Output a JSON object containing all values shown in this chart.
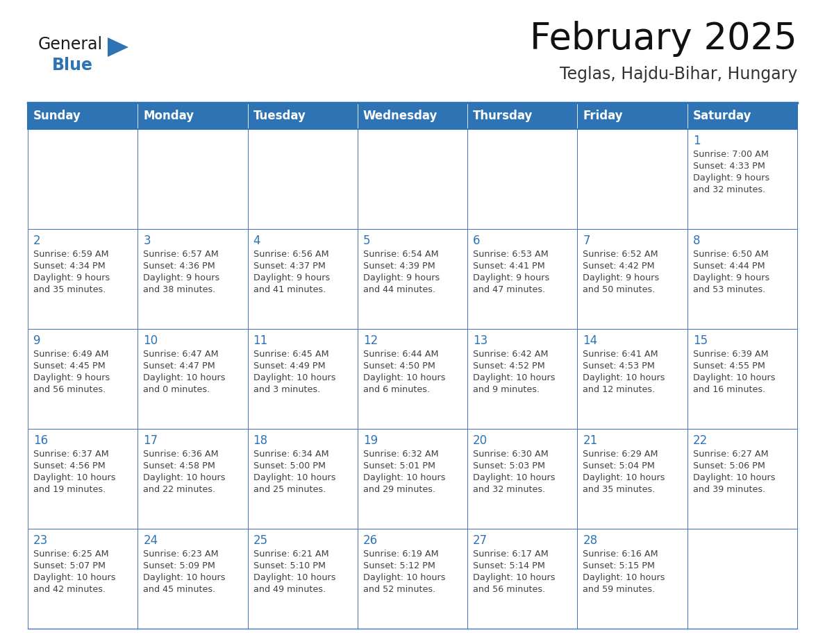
{
  "title": "February 2025",
  "subtitle": "Teglas, Hajdu-Bihar, Hungary",
  "header_color": "#2E74B5",
  "header_text_color": "#FFFFFF",
  "cell_bg_color": "#FFFFFF",
  "border_color": "#2E74B5",
  "cell_border_color": "#4472C4",
  "day_number_color": "#2E74B5",
  "info_text_color": "#404040",
  "days_of_week": [
    "Sunday",
    "Monday",
    "Tuesday",
    "Wednesday",
    "Thursday",
    "Friday",
    "Saturday"
  ],
  "calendar_data": [
    [
      {
        "day": null,
        "info": ""
      },
      {
        "day": null,
        "info": ""
      },
      {
        "day": null,
        "info": ""
      },
      {
        "day": null,
        "info": ""
      },
      {
        "day": null,
        "info": ""
      },
      {
        "day": null,
        "info": ""
      },
      {
        "day": 1,
        "info": "Sunrise: 7:00 AM\nSunset: 4:33 PM\nDaylight: 9 hours\nand 32 minutes."
      }
    ],
    [
      {
        "day": 2,
        "info": "Sunrise: 6:59 AM\nSunset: 4:34 PM\nDaylight: 9 hours\nand 35 minutes."
      },
      {
        "day": 3,
        "info": "Sunrise: 6:57 AM\nSunset: 4:36 PM\nDaylight: 9 hours\nand 38 minutes."
      },
      {
        "day": 4,
        "info": "Sunrise: 6:56 AM\nSunset: 4:37 PM\nDaylight: 9 hours\nand 41 minutes."
      },
      {
        "day": 5,
        "info": "Sunrise: 6:54 AM\nSunset: 4:39 PM\nDaylight: 9 hours\nand 44 minutes."
      },
      {
        "day": 6,
        "info": "Sunrise: 6:53 AM\nSunset: 4:41 PM\nDaylight: 9 hours\nand 47 minutes."
      },
      {
        "day": 7,
        "info": "Sunrise: 6:52 AM\nSunset: 4:42 PM\nDaylight: 9 hours\nand 50 minutes."
      },
      {
        "day": 8,
        "info": "Sunrise: 6:50 AM\nSunset: 4:44 PM\nDaylight: 9 hours\nand 53 minutes."
      }
    ],
    [
      {
        "day": 9,
        "info": "Sunrise: 6:49 AM\nSunset: 4:45 PM\nDaylight: 9 hours\nand 56 minutes."
      },
      {
        "day": 10,
        "info": "Sunrise: 6:47 AM\nSunset: 4:47 PM\nDaylight: 10 hours\nand 0 minutes."
      },
      {
        "day": 11,
        "info": "Sunrise: 6:45 AM\nSunset: 4:49 PM\nDaylight: 10 hours\nand 3 minutes."
      },
      {
        "day": 12,
        "info": "Sunrise: 6:44 AM\nSunset: 4:50 PM\nDaylight: 10 hours\nand 6 minutes."
      },
      {
        "day": 13,
        "info": "Sunrise: 6:42 AM\nSunset: 4:52 PM\nDaylight: 10 hours\nand 9 minutes."
      },
      {
        "day": 14,
        "info": "Sunrise: 6:41 AM\nSunset: 4:53 PM\nDaylight: 10 hours\nand 12 minutes."
      },
      {
        "day": 15,
        "info": "Sunrise: 6:39 AM\nSunset: 4:55 PM\nDaylight: 10 hours\nand 16 minutes."
      }
    ],
    [
      {
        "day": 16,
        "info": "Sunrise: 6:37 AM\nSunset: 4:56 PM\nDaylight: 10 hours\nand 19 minutes."
      },
      {
        "day": 17,
        "info": "Sunrise: 6:36 AM\nSunset: 4:58 PM\nDaylight: 10 hours\nand 22 minutes."
      },
      {
        "day": 18,
        "info": "Sunrise: 6:34 AM\nSunset: 5:00 PM\nDaylight: 10 hours\nand 25 minutes."
      },
      {
        "day": 19,
        "info": "Sunrise: 6:32 AM\nSunset: 5:01 PM\nDaylight: 10 hours\nand 29 minutes."
      },
      {
        "day": 20,
        "info": "Sunrise: 6:30 AM\nSunset: 5:03 PM\nDaylight: 10 hours\nand 32 minutes."
      },
      {
        "day": 21,
        "info": "Sunrise: 6:29 AM\nSunset: 5:04 PM\nDaylight: 10 hours\nand 35 minutes."
      },
      {
        "day": 22,
        "info": "Sunrise: 6:27 AM\nSunset: 5:06 PM\nDaylight: 10 hours\nand 39 minutes."
      }
    ],
    [
      {
        "day": 23,
        "info": "Sunrise: 6:25 AM\nSunset: 5:07 PM\nDaylight: 10 hours\nand 42 minutes."
      },
      {
        "day": 24,
        "info": "Sunrise: 6:23 AM\nSunset: 5:09 PM\nDaylight: 10 hours\nand 45 minutes."
      },
      {
        "day": 25,
        "info": "Sunrise: 6:21 AM\nSunset: 5:10 PM\nDaylight: 10 hours\nand 49 minutes."
      },
      {
        "day": 26,
        "info": "Sunrise: 6:19 AM\nSunset: 5:12 PM\nDaylight: 10 hours\nand 52 minutes."
      },
      {
        "day": 27,
        "info": "Sunrise: 6:17 AM\nSunset: 5:14 PM\nDaylight: 10 hours\nand 56 minutes."
      },
      {
        "day": 28,
        "info": "Sunrise: 6:16 AM\nSunset: 5:15 PM\nDaylight: 10 hours\nand 59 minutes."
      },
      {
        "day": null,
        "info": ""
      }
    ]
  ],
  "logo_general_color": "#1a1a1a",
  "logo_blue_color": "#2E74B5",
  "title_fontsize": 38,
  "subtitle_fontsize": 17,
  "header_fontsize": 12,
  "day_num_fontsize": 12,
  "info_fontsize": 9.2
}
